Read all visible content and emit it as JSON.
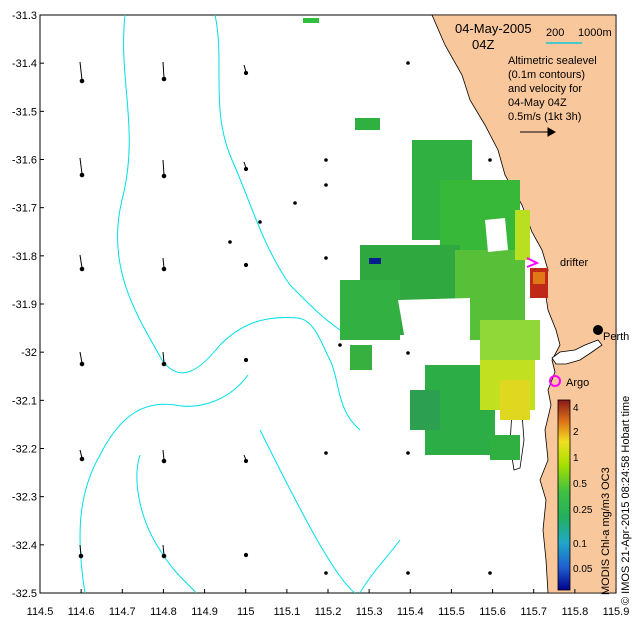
{
  "map": {
    "title": "04-May-2005",
    "subtitle": "04Z",
    "scale": {
      "left": "200",
      "right": "1000m",
      "color": "#48c8c8"
    },
    "legend": {
      "lines": [
        "Altimetric sealevel",
        "(0.1m contours)",
        "and velocity for",
        "04-May 04Z",
        "0.5m/s (1kt 3h)"
      ]
    },
    "labels": {
      "drifter": "drifter",
      "perth": "Perth",
      "argo": "Argo",
      "hobart": "Hobart time"
    },
    "colorbar": {
      "ticks": [
        "4",
        "2",
        "1",
        "0.5",
        "0.25",
        "0.1",
        "0.05"
      ],
      "title": "MODIS Chl-a mg/m3 OC3"
    },
    "credit": "© IMOS 21-Apr-2015 08:24:58 Hobart time",
    "colors": {
      "land": "#f9c79c",
      "contour": "#00e0e8",
      "drifter": "#ff00ff",
      "argo": "#ff00ff",
      "chl_high": "#8b1a1a",
      "chl_mid": "#a8e000",
      "chl_low": "#22b04a"
    }
  },
  "chart_data": {
    "type": "map",
    "xlim": [
      114.5,
      115.9
    ],
    "ylim": [
      -32.5,
      -31.3
    ],
    "x_ticks": [
      "114.5",
      "114.6",
      "114.7",
      "114.8",
      "114.9",
      "115",
      "115.1",
      "115.2",
      "115.3",
      "115.4",
      "115.5",
      "115.6",
      "115.7",
      "115.8",
      "115.9"
    ],
    "y_ticks": [
      "-31.3",
      "-31.4",
      "-31.5",
      "-31.6",
      "-31.7",
      "-31.8",
      "-31.9",
      "-32",
      "-32.1",
      "-32.2",
      "-32.3",
      "-32.4",
      "-32.5"
    ],
    "markers": [
      {
        "name": "drifter",
        "lon": 115.74,
        "lat": -31.84
      },
      {
        "name": "Argo",
        "lon": 115.735,
        "lat": -32.085
      },
      {
        "name": "Perth",
        "lon": 115.86,
        "lat": -31.955
      }
    ]
  }
}
